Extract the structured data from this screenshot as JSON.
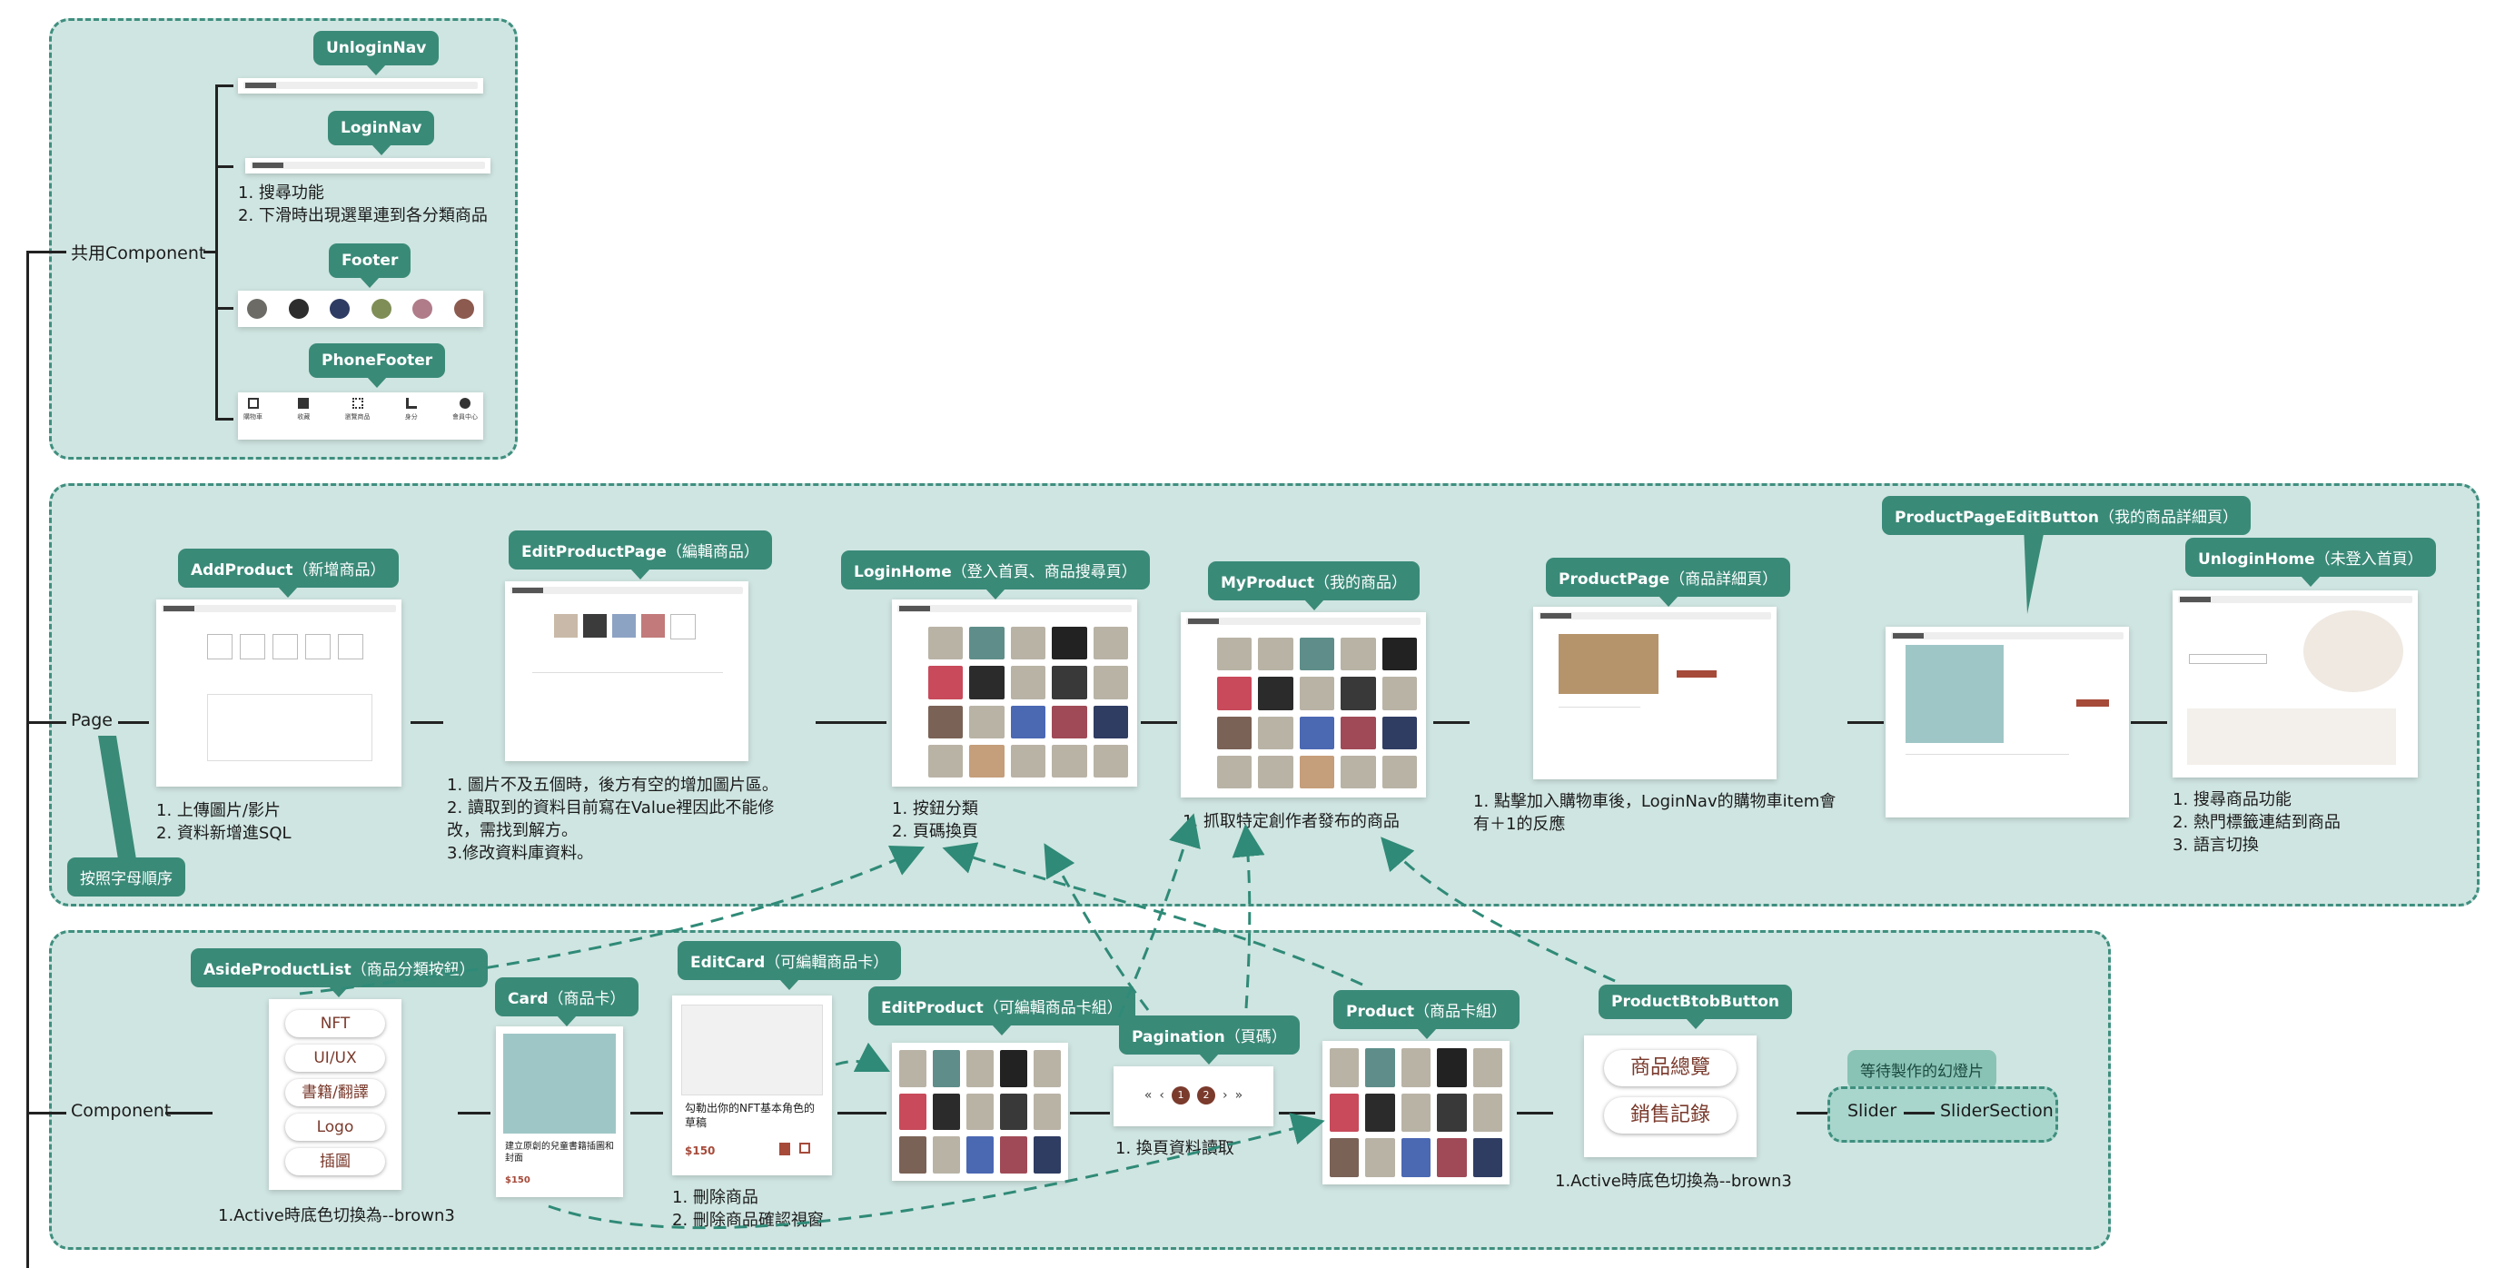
{
  "colors": {
    "group_bg": "#cfe5e1",
    "group_border": "#3f8f7f",
    "tag": "#3a8a78",
    "tag_light": "#89c3b5",
    "text": "#1b1b1b",
    "brown": "#7a3a2c"
  },
  "branches": {
    "shared": "共用Component",
    "page": "Page",
    "component": "Component"
  },
  "shared": {
    "unlogin_nav": "UnloginNav",
    "login_nav": "LoginNav",
    "login_nav_notes": "1. 搜尋功能\n2. 下滑時出現選單連到各分類商品",
    "footer": "Footer",
    "phone_footer": "PhoneFooter",
    "phone_footer_items": [
      "購物車",
      "收藏",
      "瀏覽商品",
      "身分",
      "會員中心"
    ]
  },
  "page": {
    "sort_note": "按照字母順序",
    "add_product": {
      "name": "AddProduct",
      "zh": "（新增商品）",
      "notes": "1. 上傳圖片/影片\n2. 資料新增進SQL"
    },
    "edit_product_page": {
      "name": "EditProductPage",
      "zh": "（編輯商品）",
      "notes": "1. 圖片不及五個時，後方有空的增加圖片區。\n2. 讀取到的資料目前寫在Value裡因此不能修\n改，需找到解方。\n3.修改資料庫資料。"
    },
    "login_home": {
      "name": "LoginHome",
      "zh": "（登入首頁、商品搜尋頁）",
      "notes": "1. 按鈕分類\n2. 頁碼換頁"
    },
    "my_product": {
      "name": "MyProduct",
      "zh": "（我的商品）",
      "notes": "1. 抓取特定創作者發布的商品"
    },
    "product_page": {
      "name": "ProductPage",
      "zh": "（商品詳細頁）",
      "notes": "1. 點擊加入購物車後，LoginNav的購物車item會\n有＋1的反應"
    },
    "product_page_edit_button": {
      "name": "ProductPageEditButton",
      "zh": "（我的商品詳細頁）"
    },
    "unlogin_home": {
      "name": "UnloginHome",
      "zh": "（未登入首頁）",
      "notes": "1. 搜尋商品功能\n2. 熱門標籤連結到商品\n3. 語言切換"
    }
  },
  "component": {
    "aside_product_list": {
      "name": "AsideProductList",
      "zh": "（商品分類按鈕）",
      "buttons": [
        "NFT",
        "UI/UX",
        "書籍/翻譯",
        "Logo",
        "插圖"
      ],
      "notes": "1.Active時底色切換為--brown3"
    },
    "card": {
      "name": "Card",
      "zh": "（商品卡）",
      "card_title": "建立原創的兒童書籍插圖和封面",
      "price": "$150"
    },
    "edit_card": {
      "name": "EditCard",
      "zh": "（可編輯商品卡）",
      "card_title": "勾勒出你的NFT基本角色的草稿",
      "price": "$150",
      "notes": "1. 刪除商品\n2. 刪除商品確認視窗"
    },
    "edit_product": {
      "name": "EditProduct",
      "zh": "（可編輯商品卡組）"
    },
    "pagination": {
      "name": "Pagination",
      "zh": "（頁碼）",
      "controls": [
        "«",
        "‹",
        "1",
        "2",
        "›",
        "»"
      ],
      "notes": "1. 換頁資料讀取"
    },
    "product": {
      "name": "Product",
      "zh": "（商品卡組）"
    },
    "product_btob_button": {
      "name": "ProductBtobButton",
      "buttons": [
        "商品總覽",
        "銷售記錄"
      ],
      "notes": "1.Active時底色切換為--brown3"
    },
    "slider_pending": "等待製作的幻燈片",
    "slider": "Slider",
    "slider_section": "SliderSection"
  }
}
